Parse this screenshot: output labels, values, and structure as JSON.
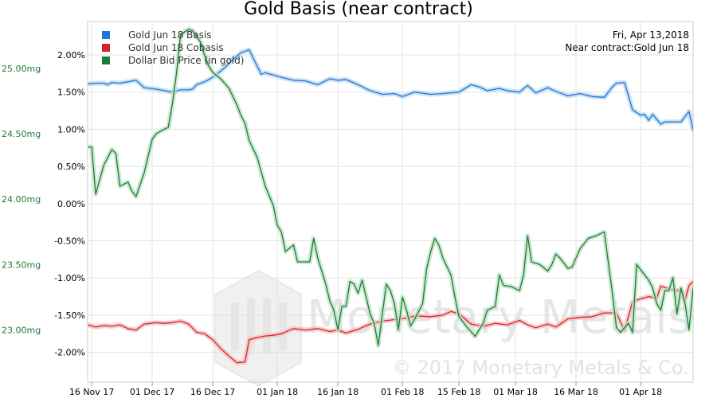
{
  "chart_data": {
    "type": "line",
    "title": "Gold Basis (near contract)",
    "info": {
      "date": "Fri, Apr 13,2018",
      "contract": "Near contract:Gold Jun 18"
    },
    "legend_placement": "top-left",
    "grid": true,
    "colors": {
      "basis": "#1f77d4",
      "cobasis": "#d62728",
      "dollar": "#1f7a3a"
    },
    "x_ticks": [
      "16 Nov 17",
      "01 Dec 17",
      "16 Dec 17",
      "01 Jan 18",
      "16 Jan 18",
      "01 Feb 18",
      "15 Feb 18",
      "01 Mar 18",
      "16 Mar 18",
      "01 Apr 18"
    ],
    "x_tick_days": [
      0,
      15,
      30,
      46,
      61,
      77,
      91,
      105,
      120,
      136
    ],
    "x_range_days": [
      -1,
      149
    ],
    "y_right": {
      "ticks": [
        "2.00%",
        "1.50%",
        "1.00%",
        "0.50%",
        "0.00%",
        "-0.50%",
        "-1.00%",
        "-1.50%",
        "-2.00%"
      ],
      "tick_values": [
        2.0,
        1.5,
        1.0,
        0.5,
        0.0,
        -0.5,
        -1.0,
        -1.5,
        -2.0
      ],
      "range": [
        -2.4,
        2.45
      ]
    },
    "y_left": {
      "ticks": [
        "25.00mg",
        "24.50mg",
        "24.00mg",
        "23.50mg",
        "23.00mg"
      ],
      "tick_values": [
        25.0,
        24.5,
        24.0,
        23.5,
        23.0
      ],
      "range": [
        22.6,
        25.36
      ]
    },
    "series": [
      {
        "key": "basis",
        "name": "Gold Jun 18 Basis",
        "axis": "right",
        "x": [
          -1,
          1,
          3,
          4,
          5,
          7,
          9,
          11,
          13,
          16,
          18,
          20,
          22,
          24,
          25,
          26,
          28,
          30,
          33,
          35,
          37,
          39,
          42,
          43,
          45,
          47,
          50,
          53,
          56,
          59,
          61,
          63,
          66,
          69,
          72,
          75,
          77,
          80,
          84,
          87,
          91,
          94,
          96,
          98,
          101,
          103,
          106,
          108,
          110,
          113,
          115,
          118,
          121,
          124,
          127,
          129,
          130,
          132,
          134,
          136,
          137,
          138,
          139,
          141,
          142,
          144,
          146,
          148,
          149
        ],
        "y": [
          1.61,
          1.62,
          1.62,
          1.6,
          1.63,
          1.62,
          1.64,
          1.66,
          1.56,
          1.54,
          1.52,
          1.5,
          1.53,
          1.53,
          1.54,
          1.6,
          1.64,
          1.7,
          1.83,
          1.94,
          2.03,
          2.07,
          1.74,
          1.76,
          1.73,
          1.7,
          1.66,
          1.65,
          1.6,
          1.68,
          1.66,
          1.67,
          1.6,
          1.52,
          1.47,
          1.48,
          1.44,
          1.5,
          1.47,
          1.48,
          1.5,
          1.6,
          1.57,
          1.52,
          1.55,
          1.52,
          1.5,
          1.59,
          1.49,
          1.56,
          1.51,
          1.45,
          1.48,
          1.44,
          1.43,
          1.57,
          1.62,
          1.63,
          1.26,
          1.19,
          1.2,
          1.12,
          1.2,
          1.07,
          1.1,
          1.1,
          1.1,
          1.24,
          0.99
        ]
      },
      {
        "key": "cobasis",
        "name": "Gold Jun 18 Cobasis",
        "axis": "right",
        "x": [
          -1,
          1,
          3,
          5,
          7,
          9,
          11,
          13,
          16,
          18,
          20,
          22,
          24,
          26,
          28,
          30,
          32,
          34,
          36,
          38,
          39,
          41,
          43,
          45,
          47,
          50,
          53,
          56,
          59,
          61,
          63,
          66,
          69,
          72,
          75,
          78,
          80,
          84,
          87,
          89,
          91,
          94,
          97,
          100,
          103,
          106,
          108,
          110,
          113,
          115,
          118,
          121,
          124,
          127,
          130,
          132,
          134,
          136,
          138,
          140,
          141,
          142,
          144,
          146,
          147,
          148,
          149
        ],
        "y": [
          -1.63,
          -1.66,
          -1.64,
          -1.65,
          -1.63,
          -1.68,
          -1.7,
          -1.62,
          -1.6,
          -1.61,
          -1.6,
          -1.58,
          -1.62,
          -1.73,
          -1.75,
          -1.83,
          -1.95,
          -2.05,
          -2.14,
          -2.13,
          -1.83,
          -1.8,
          -1.78,
          -1.77,
          -1.75,
          -1.68,
          -1.7,
          -1.68,
          -1.72,
          -1.7,
          -1.74,
          -1.69,
          -1.62,
          -1.58,
          -1.56,
          -1.54,
          -1.51,
          -1.52,
          -1.5,
          -1.45,
          -1.48,
          -1.62,
          -1.65,
          -1.61,
          -1.63,
          -1.57,
          -1.63,
          -1.67,
          -1.62,
          -1.66,
          -1.55,
          -1.53,
          -1.52,
          -1.47,
          -1.47,
          -1.71,
          -1.32,
          -1.28,
          -1.25,
          -1.27,
          -1.11,
          -1.13,
          -1.16,
          -1.17,
          -1.3,
          -1.1,
          -1.05
        ]
      },
      {
        "key": "dollar",
        "name": "Dollar Bid Price (in gold)",
        "axis": "left",
        "x": [
          -1,
          0,
          1,
          3,
          5,
          6,
          7,
          9,
          10,
          11,
          13,
          15,
          16,
          17,
          19,
          20,
          21,
          22,
          23,
          24,
          25,
          27,
          28,
          29,
          30,
          32,
          34,
          36,
          37,
          38,
          39,
          41,
          43,
          45,
          46,
          47,
          48,
          50,
          51,
          53,
          54,
          55,
          56,
          58,
          59,
          60,
          61,
          62,
          63,
          64,
          65,
          66,
          67,
          68,
          69,
          70,
          71,
          72,
          73,
          74,
          75,
          76,
          77,
          78,
          79,
          80,
          82,
          83,
          84,
          85,
          86,
          87,
          89,
          90,
          91,
          93,
          95,
          97,
          98,
          100,
          101,
          102,
          104,
          106,
          107,
          108,
          109,
          111,
          113,
          114,
          115,
          116,
          118,
          119,
          121,
          123,
          125,
          127,
          129,
          130,
          131,
          133,
          134,
          135,
          137,
          138,
          139,
          140,
          141,
          142,
          143,
          144,
          145,
          146,
          147,
          148,
          149
        ],
        "y": [
          24.4,
          24.4,
          24.04,
          24.26,
          24.38,
          24.35,
          24.1,
          24.13,
          24.06,
          24.02,
          24.2,
          24.46,
          24.5,
          24.52,
          24.55,
          24.73,
          24.96,
          25.25,
          25.28,
          25.3,
          25.29,
          25.2,
          25.1,
          25.02,
          24.97,
          24.92,
          24.85,
          24.72,
          24.64,
          24.58,
          24.45,
          24.32,
          24.1,
          23.95,
          23.8,
          23.75,
          23.6,
          23.65,
          23.52,
          23.52,
          23.52,
          23.7,
          23.55,
          23.35,
          23.22,
          23.15,
          23.0,
          23.18,
          23.18,
          23.37,
          23.35,
          23.28,
          23.38,
          23.25,
          23.12,
          23.05,
          22.88,
          23.12,
          23.35,
          23.3,
          23.2,
          23.0,
          23.25,
          23.15,
          23.03,
          23.08,
          23.2,
          23.47,
          23.6,
          23.7,
          23.65,
          23.55,
          23.42,
          23.25,
          23.1,
          23.02,
          22.95,
          23.05,
          23.15,
          23.18,
          23.42,
          23.34,
          23.33,
          23.3,
          23.42,
          23.72,
          23.52,
          23.5,
          23.45,
          23.5,
          23.58,
          23.55,
          23.47,
          23.48,
          23.62,
          23.7,
          23.72,
          23.75,
          23.28,
          23.02,
          22.98,
          23.05,
          22.98,
          23.5,
          23.42,
          23.38,
          23.32,
          23.2,
          23.15,
          23.3,
          23.3,
          23.4,
          23.12,
          23.32,
          23.2,
          23.0,
          23.32
        ]
      }
    ]
  },
  "watermark": {
    "text": "Monetary Metals",
    "copyright": "© 2017 Monetary Metals & Co."
  }
}
